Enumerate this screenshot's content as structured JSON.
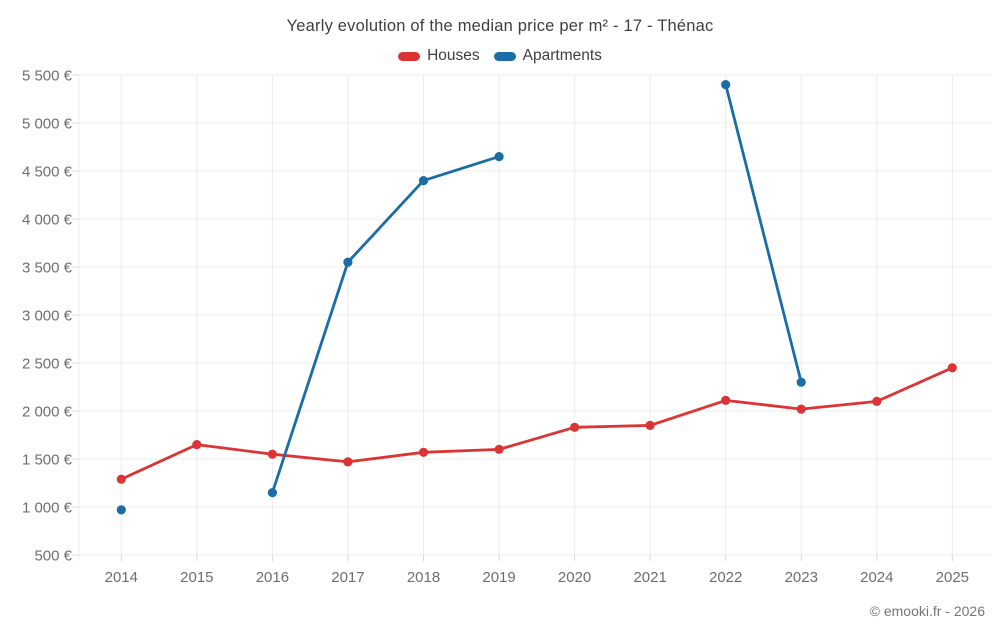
{
  "chart_data": {
    "type": "line",
    "title": "Yearly evolution of the median price per m² - 17 - Thénac",
    "xlabel": "",
    "ylabel": "",
    "x": [
      "2014",
      "2015",
      "2016",
      "2017",
      "2018",
      "2019",
      "2020",
      "2021",
      "2022",
      "2023",
      "2024",
      "2025"
    ],
    "series": [
      {
        "name": "Houses",
        "color": "#dc3434",
        "values": [
          1290,
          1650,
          1550,
          1470,
          1570,
          1600,
          1830,
          1850,
          2110,
          2020,
          2100,
          2450
        ]
      },
      {
        "name": "Apartments",
        "color": "#1b6da6",
        "values": [
          970,
          null,
          1150,
          3550,
          4400,
          4650,
          null,
          null,
          5400,
          2300,
          null,
          null
        ]
      }
    ],
    "ylim": [
      500,
      5500
    ],
    "yticks": [
      {
        "value": 500,
        "label": "500 €"
      },
      {
        "value": 1000,
        "label": "1 000 €"
      },
      {
        "value": 1500,
        "label": "1 500 €"
      },
      {
        "value": 2000,
        "label": "2 000 €"
      },
      {
        "value": 2500,
        "label": "2 500 €"
      },
      {
        "value": 3000,
        "label": "3 000 €"
      },
      {
        "value": 3500,
        "label": "3 500 €"
      },
      {
        "value": 4000,
        "label": "4 000 €"
      },
      {
        "value": 4500,
        "label": "4 500 €"
      },
      {
        "value": 5000,
        "label": "5 000 €"
      },
      {
        "value": 5500,
        "label": "5 500 €"
      }
    ],
    "grid": true,
    "legend_position": "top",
    "currency": "€"
  },
  "footer": {
    "copyright": "© emooki.fr - 2026"
  }
}
